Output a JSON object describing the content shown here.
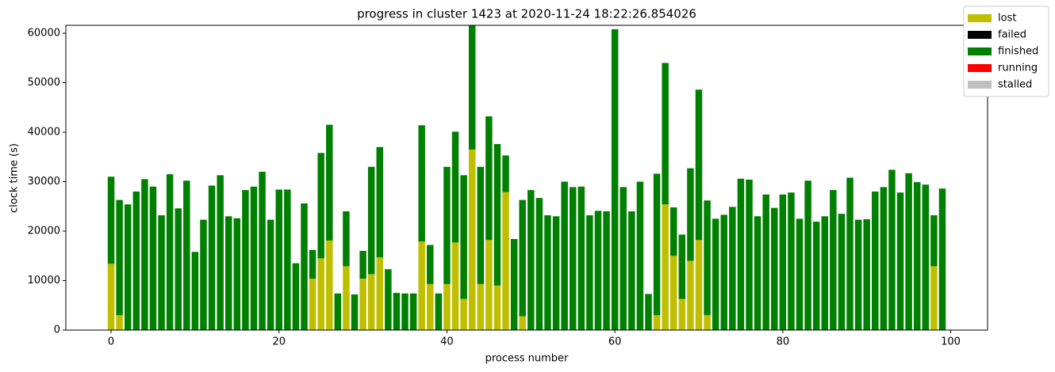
{
  "chart_data": {
    "type": "stacked_bar",
    "title": "progress in cluster 1423 at 2020-11-24 18:22:26.854026",
    "xlabel": "process number",
    "ylabel": "clock time (s)",
    "x": [
      0,
      1,
      2,
      3,
      4,
      5,
      6,
      7,
      8,
      9,
      10,
      11,
      12,
      13,
      14,
      15,
      16,
      17,
      18,
      19,
      20,
      21,
      22,
      23,
      24,
      25,
      26,
      27,
      28,
      29,
      30,
      31,
      32,
      33,
      34,
      35,
      36,
      37,
      38,
      39,
      40,
      41,
      42,
      43,
      44,
      45,
      46,
      47,
      48,
      49,
      50,
      51,
      52,
      53,
      54,
      55,
      56,
      57,
      58,
      59,
      60,
      61,
      62,
      63,
      64,
      65,
      66,
      67,
      68,
      69,
      70,
      71,
      72,
      73,
      74,
      75,
      76,
      77,
      78,
      79,
      80,
      81,
      82,
      83,
      84,
      85,
      86,
      87,
      88,
      89,
      90,
      91,
      92,
      93,
      94,
      95,
      96,
      97,
      98,
      99
    ],
    "bar_width": 0.8,
    "xlim": [
      -5.39,
      104.39
    ],
    "ylim": [
      0,
      61600
    ],
    "xticks": [
      0,
      20,
      40,
      60,
      80,
      100
    ],
    "yticks": [
      0,
      10000,
      20000,
      30000,
      40000,
      50000,
      60000
    ],
    "legend": "upper right",
    "series": [
      {
        "name": "lost",
        "color": "#bfbf00",
        "values": [
          13400,
          3000,
          0,
          0,
          0,
          0,
          0,
          0,
          0,
          0,
          0,
          0,
          0,
          0,
          0,
          0,
          0,
          0,
          0,
          0,
          0,
          0,
          0,
          0,
          10400,
          14500,
          18100,
          0,
          12900,
          0,
          10400,
          11300,
          14700,
          0,
          0,
          0,
          0,
          17900,
          9300,
          0,
          9300,
          17700,
          6300,
          36500,
          9300,
          18200,
          9000,
          27900,
          0,
          2800,
          0,
          0,
          0,
          0,
          0,
          0,
          0,
          0,
          0,
          0,
          0,
          0,
          0,
          0,
          0,
          3000,
          25400,
          15000,
          6300,
          14000,
          18200,
          3000,
          0,
          0,
          0,
          0,
          0,
          0,
          0,
          0,
          0,
          0,
          0,
          0,
          0,
          0,
          0,
          0,
          0,
          0,
          0,
          0,
          0,
          0,
          0,
          0,
          0,
          0,
          12900,
          0
        ]
      },
      {
        "name": "failed",
        "color": "#000000",
        "values": [
          0,
          0,
          0,
          0,
          0,
          0,
          0,
          0,
          0,
          0,
          0,
          0,
          0,
          0,
          0,
          0,
          0,
          0,
          0,
          0,
          0,
          0,
          0,
          0,
          0,
          0,
          0,
          0,
          0,
          0,
          0,
          0,
          0,
          0,
          0,
          0,
          0,
          0,
          0,
          0,
          0,
          0,
          0,
          0,
          0,
          0,
          0,
          0,
          0,
          0,
          0,
          0,
          0,
          0,
          0,
          0,
          0,
          0,
          0,
          0,
          0,
          0,
          0,
          0,
          0,
          0,
          0,
          0,
          0,
          0,
          0,
          0,
          0,
          0,
          0,
          0,
          0,
          0,
          0,
          0,
          0,
          0,
          0,
          0,
          0,
          0,
          0,
          0,
          0,
          0,
          0,
          0,
          0,
          0,
          0,
          0,
          0,
          0,
          0,
          0
        ]
      },
      {
        "name": "finished",
        "color": "#008000",
        "values": [
          17600,
          23300,
          25400,
          28000,
          30500,
          29000,
          23200,
          31500,
          24600,
          30200,
          15800,
          22300,
          29200,
          31300,
          23000,
          22600,
          28300,
          29000,
          32000,
          22300,
          28400,
          28400,
          13500,
          25600,
          5800,
          21300,
          23400,
          7400,
          11100,
          7200,
          5600,
          21700,
          22300,
          12300,
          7500,
          7400,
          7400,
          23500,
          7900,
          7400,
          23700,
          22400,
          25000,
          25100,
          23700,
          25000,
          28600,
          7400,
          18400,
          23500,
          28300,
          26700,
          23200,
          23000,
          30000,
          28900,
          29000,
          23200,
          24100,
          24000,
          60800,
          28900,
          24000,
          30000,
          7300,
          28600,
          28600,
          9800,
          13000,
          18700,
          30400,
          23200,
          22500,
          23300,
          24900,
          30600,
          30400,
          23000,
          27400,
          24700,
          27400,
          27800,
          22500,
          30200,
          21900,
          23000,
          28300,
          23500,
          30800,
          22300,
          22400,
          28000,
          28900,
          32400,
          27800,
          31700,
          29900,
          29400,
          10300,
          28600
        ]
      },
      {
        "name": "running",
        "color": "#ff0000",
        "values": [
          0,
          0,
          0,
          0,
          0,
          0,
          0,
          0,
          0,
          0,
          0,
          0,
          0,
          0,
          0,
          0,
          0,
          0,
          0,
          0,
          0,
          0,
          0,
          0,
          0,
          0,
          0,
          0,
          0,
          0,
          0,
          0,
          0,
          0,
          0,
          0,
          0,
          0,
          0,
          0,
          0,
          0,
          0,
          0,
          0,
          0,
          0,
          0,
          0,
          0,
          0,
          0,
          0,
          0,
          0,
          0,
          0,
          0,
          0,
          0,
          0,
          0,
          0,
          0,
          0,
          0,
          0,
          0,
          0,
          0,
          0,
          0,
          0,
          0,
          0,
          0,
          0,
          0,
          0,
          0,
          0,
          0,
          0,
          0,
          0,
          0,
          0,
          0,
          0,
          0,
          0,
          0,
          0,
          0,
          0,
          0,
          0,
          0,
          0,
          0
        ]
      },
      {
        "name": "stalled",
        "color": "#c0c0c0",
        "values": [
          0,
          0,
          0,
          0,
          0,
          0,
          0,
          0,
          0,
          0,
          0,
          0,
          0,
          0,
          0,
          0,
          0,
          0,
          0,
          0,
          0,
          0,
          0,
          0,
          0,
          0,
          0,
          0,
          0,
          0,
          0,
          0,
          0,
          0,
          0,
          0,
          0,
          0,
          0,
          0,
          0,
          0,
          0,
          0,
          0,
          0,
          0,
          0,
          0,
          0,
          0,
          0,
          0,
          0,
          0,
          0,
          0,
          0,
          0,
          0,
          0,
          0,
          0,
          0,
          0,
          0,
          0,
          0,
          0,
          0,
          0,
          0,
          0,
          0,
          0,
          0,
          0,
          0,
          0,
          0,
          0,
          0,
          0,
          0,
          0,
          0,
          0,
          0,
          0,
          0,
          0,
          0,
          0,
          0,
          0,
          0,
          0,
          0,
          0,
          0
        ]
      }
    ]
  }
}
